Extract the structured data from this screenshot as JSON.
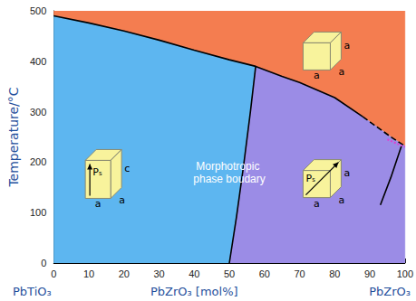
{
  "chart_data": {
    "type": "phase_diagram",
    "ylabel": "Temperature/°C",
    "x_labels": {
      "left": "PbTiO₃",
      "center": "PbZrO₃ [mol%]",
      "right": "PbZrO₃"
    },
    "annotation": "Morphotropic phase boudary",
    "xlim": [
      0,
      100
    ],
    "xticks": [
      0,
      10,
      20,
      30,
      40,
      50,
      60,
      70,
      80,
      90,
      100
    ],
    "ylim": [
      0,
      500
    ],
    "yticks": [
      0,
      100,
      200,
      300,
      400,
      500
    ],
    "grid": false,
    "regions": {
      "cubic": {
        "color": "#f47d50"
      },
      "tetragonal": {
        "color": "#5db6f0"
      },
      "rhombohedral": {
        "color": "#9b8ce6"
      }
    },
    "boundaries": {
      "curie": {
        "line_style": "solid",
        "color": "#000000",
        "points": [
          [
            0,
            490
          ],
          [
            10,
            476
          ],
          [
            20,
            460
          ],
          [
            30,
            442
          ],
          [
            40,
            422
          ],
          [
            50,
            403
          ],
          [
            57.5,
            390
          ],
          [
            65,
            370
          ],
          [
            70,
            358
          ],
          [
            80,
            328
          ],
          [
            88,
            290
          ]
        ]
      },
      "curie_extension": {
        "line_style": "dashed",
        "color": "#000000",
        "points": [
          [
            88,
            290
          ],
          [
            92,
            270
          ],
          [
            96,
            250
          ],
          [
            100,
            232
          ]
        ]
      },
      "morphotropic": {
        "line_style": "solid",
        "color": "#000000",
        "points": [
          [
            50,
            0
          ],
          [
            52,
            90
          ],
          [
            54,
            190
          ],
          [
            56,
            300
          ],
          [
            57.5,
            390
          ]
        ]
      },
      "rhombohedral_low": {
        "line_style": "solid",
        "color": "#000000",
        "points": [
          [
            93,
            115
          ],
          [
            96,
            170
          ],
          [
            99,
            232
          ]
        ]
      },
      "antiferroelectric": {
        "line_style": "dotted",
        "color": "#e040d0",
        "points": [
          [
            95,
            245
          ],
          [
            98,
            236
          ],
          [
            100,
            230
          ]
        ]
      }
    },
    "unit_cells": {
      "tetragonal": {
        "edges": [
          "a",
          "a",
          "c"
        ],
        "polarization": "Pₛ"
      },
      "cubic": {
        "edges": [
          "a",
          "a",
          "a"
        ]
      },
      "rhombohedral": {
        "edges": [
          "a",
          "a",
          "a"
        ],
        "polarization": "Pₛ"
      }
    }
  }
}
